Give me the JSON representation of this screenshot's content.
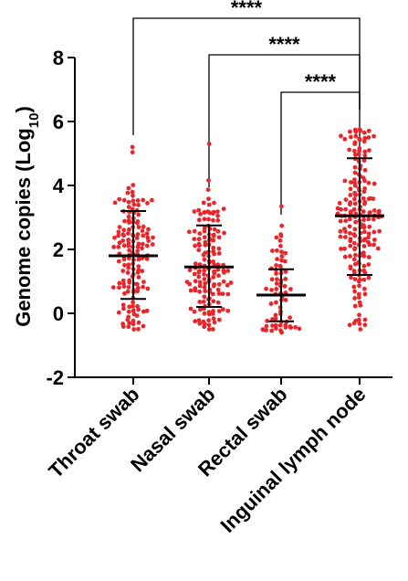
{
  "chart_data": {
    "type": "scatter",
    "subtype": "dot-plot-with-mean-and-sd",
    "title": "",
    "xlabel": "",
    "ylabel": {
      "main": "Genome copies (Log",
      "sub": "10",
      "close": ")"
    },
    "ylim": [
      -2,
      8
    ],
    "yticks": [
      "-2",
      "0",
      "2",
      "4",
      "6",
      "8"
    ],
    "grid": false,
    "legend": "none",
    "point_color": "#e8262b",
    "line_color": "#000000",
    "groups": [
      {
        "label": "Throat swab",
        "n": 150,
        "mean": 1.8,
        "sd_low": 0.45,
        "sd_high": 3.2,
        "min": -0.5,
        "max": 5.2
      },
      {
        "label": "Nasal swab",
        "n": 150,
        "mean": 1.45,
        "sd_low": 0.2,
        "sd_high": 2.75,
        "min": -0.5,
        "max": 5.3
      },
      {
        "label": "Rectal swab",
        "n": 70,
        "mean": 0.57,
        "sd_low": -0.25,
        "sd_high": 1.38,
        "min": -0.6,
        "max": 3.35
      },
      {
        "label": "Inguinal lymph node",
        "n": 190,
        "mean": 3.05,
        "sd_low": 1.2,
        "sd_high": 4.85,
        "min": -0.5,
        "max": 5.75
      }
    ],
    "comparisons": [
      {
        "from": "Throat swab",
        "to": "Inguinal lymph node",
        "label": "****"
      },
      {
        "from": "Nasal swab",
        "to": "Inguinal lymph node",
        "label": "****"
      },
      {
        "from": "Rectal swab",
        "to": "Inguinal lymph node",
        "label": "****"
      }
    ]
  }
}
